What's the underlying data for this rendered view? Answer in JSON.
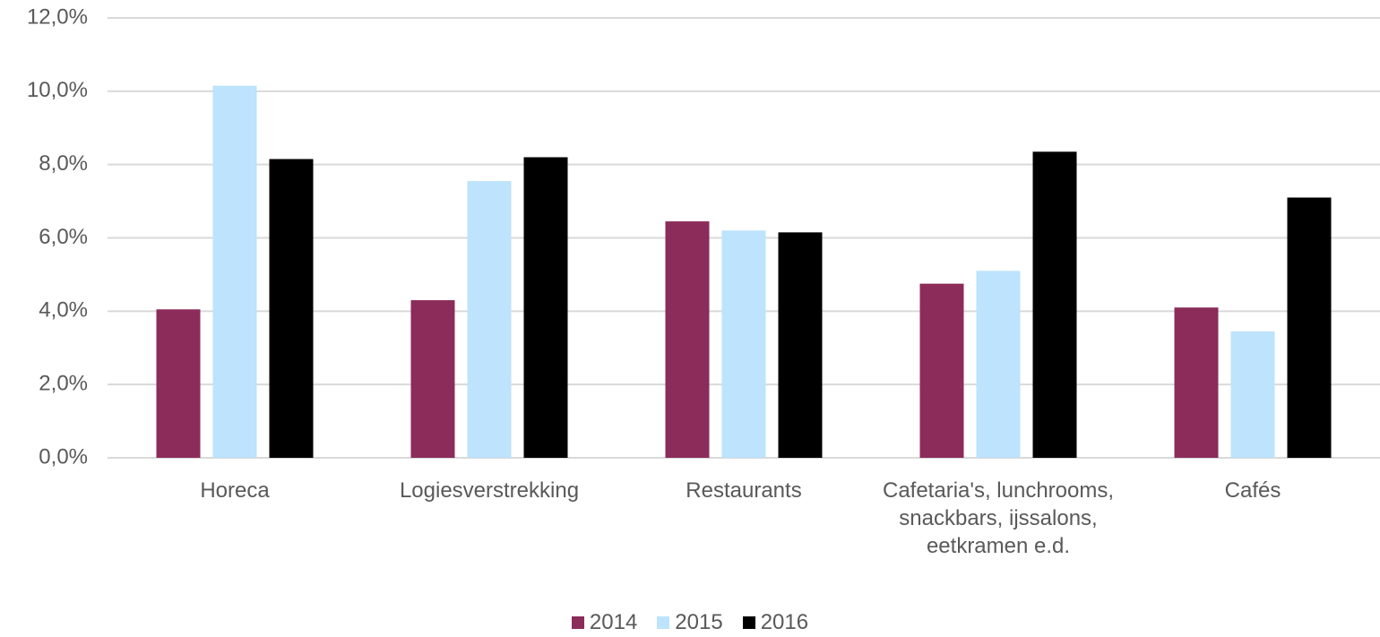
{
  "chart_data": {
    "type": "bar",
    "categories": [
      "Horeca",
      "Logiesverstrekking",
      "Restaurants",
      "Cafetaria's, lunchrooms, snackbars, ijssalons, eetkramen e.d.",
      "Cafés"
    ],
    "series": [
      {
        "name": "2014",
        "color": "#8b2c5a",
        "values": [
          4.05,
          4.3,
          6.45,
          4.75,
          4.1
        ]
      },
      {
        "name": "2015",
        "color": "#bde3fd",
        "values": [
          10.15,
          7.55,
          6.2,
          5.1,
          3.45
        ]
      },
      {
        "name": "2016",
        "color": "#000000",
        "values": [
          8.15,
          8.2,
          6.15,
          8.35,
          7.1
        ]
      }
    ],
    "ylim": [
      0,
      12
    ],
    "yticks": [
      {
        "value": 0,
        "label": "0,0%"
      },
      {
        "value": 2,
        "label": "2,0%"
      },
      {
        "value": 4,
        "label": "4,0%"
      },
      {
        "value": 6,
        "label": "6,0%"
      },
      {
        "value": 8,
        "label": "8,0%"
      },
      {
        "value": 10,
        "label": "10,0%"
      },
      {
        "value": 12,
        "label": "12,0%"
      }
    ],
    "grid": true,
    "legend": "bottom"
  }
}
